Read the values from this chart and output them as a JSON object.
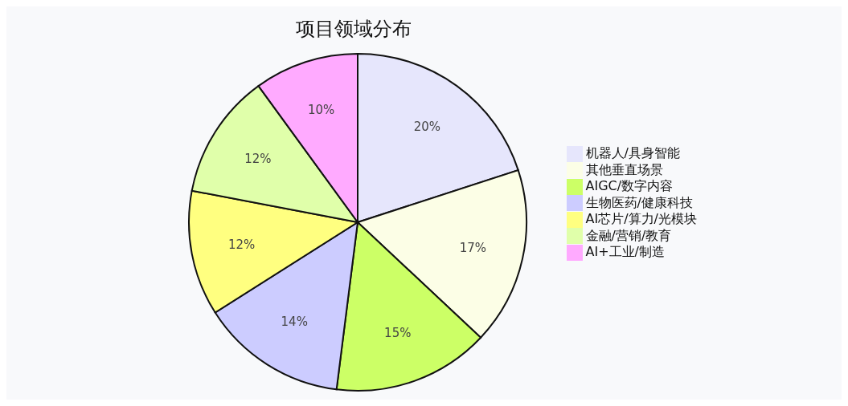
{
  "chart_data": {
    "type": "pie",
    "title": "项目领域分布",
    "categories": [
      "机器人/具身智能",
      "其他垂直场景",
      "AIGC/数字内容",
      "生物医药/健康科技",
      "AI芯片/算力/光模块",
      "金融/营销/教育",
      "AI+工业/制造"
    ],
    "values": [
      20,
      17,
      15,
      14,
      12,
      12,
      10
    ],
    "value_labels": [
      "20%",
      "17%",
      "15%",
      "14%",
      "12%",
      "12%",
      "10%"
    ],
    "colors": [
      "#e6e6fc",
      "#fcfee6",
      "#ccff66",
      "#ccccff",
      "#ffff80",
      "#e0ffaa",
      "#ffaaff"
    ],
    "legend": "right"
  }
}
